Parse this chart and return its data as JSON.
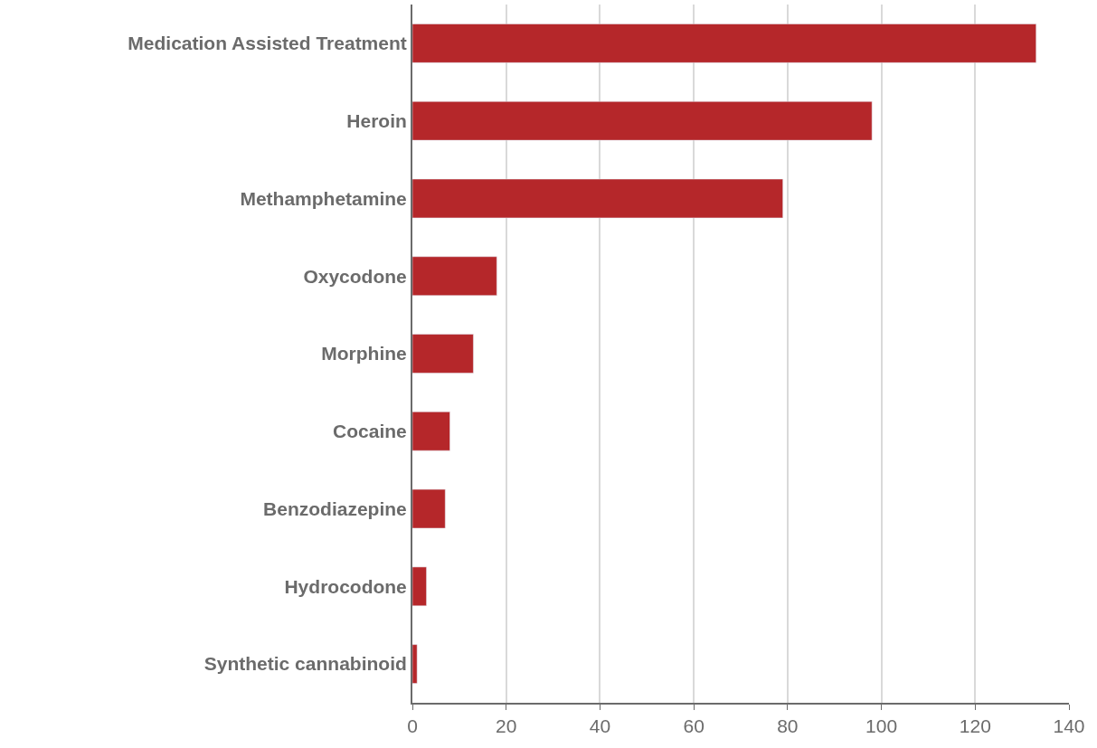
{
  "chart_data": {
    "type": "bar",
    "orientation": "horizontal",
    "categories": [
      "Medication Assisted Treatment",
      "Heroin",
      "Methamphetamine",
      "Oxycodone",
      "Morphine",
      "Cocaine",
      "Benzodiazepine",
      "Hydrocodone",
      "Synthetic cannabinoid"
    ],
    "values": [
      133,
      98,
      79,
      18,
      13,
      8,
      7,
      3,
      1
    ],
    "color": "#b5272a",
    "xlim": [
      0,
      140
    ],
    "xticks": [
      0,
      20,
      40,
      60,
      80,
      100,
      120,
      140
    ],
    "grid": "x"
  }
}
